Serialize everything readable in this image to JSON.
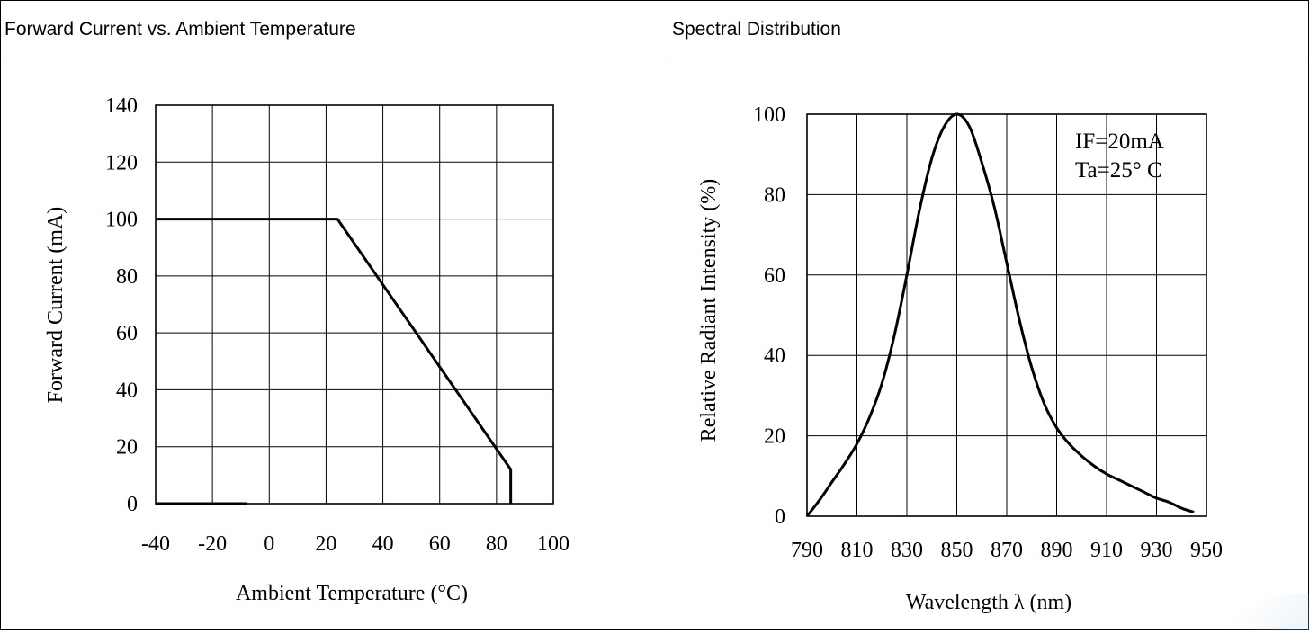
{
  "headers": {
    "left": "Forward Current vs. Ambient Temperature",
    "right": "Spectral Distribution"
  },
  "chart_data": [
    {
      "type": "line",
      "title": "Forward Current vs. Ambient Temperature",
      "xlabel": "Ambient Temperature (°C)",
      "ylabel": "Forward Current (mA)",
      "xlim": [
        -40,
        100
      ],
      "ylim": [
        0,
        140
      ],
      "xticks": [
        -40,
        -20,
        0,
        20,
        40,
        60,
        80,
        100
      ],
      "xtick_labels": [
        "-40",
        "-20",
        "0",
        "20",
        "40",
        "60",
        "80",
        "100"
      ],
      "yticks": [
        0,
        20,
        40,
        60,
        80,
        100,
        120,
        140
      ],
      "ytick_labels": [
        "0",
        "20",
        "40",
        "60",
        "80",
        "100",
        "120",
        "140"
      ],
      "grid": true,
      "series": [
        {
          "x": [
            -40,
            24,
            85,
            85
          ],
          "y": [
            100,
            100,
            12,
            0
          ]
        }
      ]
    },
    {
      "type": "line",
      "title": "Spectral Distribution",
      "xlabel": "Wavelength",
      "xlabel_symbol": "λ",
      "xlabel_unit": "(nm)",
      "ylabel": "Relative Radiant Intensity (%)",
      "xlim": [
        790,
        950
      ],
      "ylim": [
        0,
        100
      ],
      "xticks": [
        790,
        810,
        830,
        850,
        870,
        890,
        910,
        930,
        950
      ],
      "xtick_labels": [
        "790",
        "810",
        "830",
        "850",
        "870",
        "890",
        "910",
        "930",
        "950"
      ],
      "yticks": [
        0,
        20,
        40,
        60,
        80,
        100
      ],
      "ytick_labels": [
        "0",
        "20",
        "40",
        "60",
        "80",
        "100"
      ],
      "grid": true,
      "annotations": [
        "IF=20mA",
        "Ta=25°  C"
      ],
      "series": [
        {
          "x": [
            790,
            795,
            800,
            805,
            810,
            815,
            820,
            825,
            830,
            835,
            840,
            845,
            850,
            855,
            860,
            865,
            870,
            875,
            880,
            885,
            890,
            895,
            900,
            905,
            910,
            915,
            920,
            925,
            930,
            935,
            940,
            945
          ],
          "y": [
            0,
            4,
            8.5,
            13,
            18,
            24.5,
            33,
            45,
            60,
            76,
            89,
            97,
            100,
            97,
            88,
            77,
            63,
            49,
            37,
            28,
            22,
            18,
            15,
            12.5,
            10.5,
            9,
            7.5,
            6,
            4.5,
            3.5,
            2,
            1
          ]
        }
      ]
    }
  ]
}
